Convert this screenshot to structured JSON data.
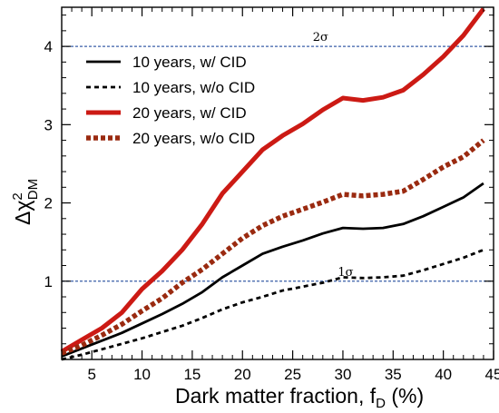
{
  "chart_data": {
    "type": "line",
    "xlabel_main": "Dark matter fraction, f",
    "xlabel_sub": "D",
    "xlabel_tail": " (%)",
    "ylabel_main": "Δχ",
    "ylabel_sup": "2",
    "ylabel_sub": "DM",
    "xlim": [
      2,
      45
    ],
    "ylim": [
      0,
      4.5
    ],
    "xticks": [
      5,
      10,
      15,
      20,
      25,
      30,
      35,
      40,
      45
    ],
    "yticks": [
      1,
      2,
      3,
      4
    ],
    "reference_lines": [
      {
        "y": 4,
        "label": "2σ",
        "label_x": 27,
        "color": "#3a5fa8"
      },
      {
        "y": 1,
        "label": "1σ",
        "label_x": 29.5,
        "color": "#3a5fa8"
      }
    ],
    "legend_position": "upper-left",
    "series": [
      {
        "name": "10 years, w/ CID",
        "color": "#000000",
        "width": 2.8,
        "dash": "",
        "x": [
          2,
          4,
          6,
          8,
          10,
          12,
          14,
          16,
          18,
          20,
          22,
          24,
          26,
          28,
          30,
          32,
          34,
          36,
          38,
          40,
          42,
          44
        ],
        "y": [
          0.04,
          0.14,
          0.24,
          0.34,
          0.46,
          0.58,
          0.71,
          0.86,
          1.05,
          1.2,
          1.35,
          1.44,
          1.52,
          1.61,
          1.68,
          1.67,
          1.68,
          1.73,
          1.83,
          1.95,
          2.07,
          2.25
        ]
      },
      {
        "name": "10 years, w/o CID",
        "color": "#000000",
        "width": 2.8,
        "dash": "5,4",
        "x": [
          2,
          4,
          6,
          8,
          10,
          12,
          14,
          16,
          18,
          20,
          22,
          24,
          26,
          28,
          30,
          32,
          34,
          36,
          38,
          40,
          42,
          44
        ],
        "y": [
          0.0,
          0.06,
          0.13,
          0.2,
          0.27,
          0.35,
          0.43,
          0.53,
          0.64,
          0.73,
          0.8,
          0.88,
          0.93,
          0.98,
          1.05,
          1.04,
          1.05,
          1.07,
          1.14,
          1.22,
          1.3,
          1.4
        ]
      },
      {
        "name": "20 years, w/ CID",
        "color": "#cc1a14",
        "width": 5,
        "dash": "",
        "x": [
          2,
          4,
          6,
          8,
          10,
          12,
          14,
          16,
          18,
          20,
          22,
          24,
          26,
          28,
          30,
          32,
          34,
          36,
          38,
          40,
          42,
          44
        ],
        "y": [
          0.1,
          0.25,
          0.4,
          0.6,
          0.9,
          1.13,
          1.4,
          1.73,
          2.12,
          2.4,
          2.68,
          2.86,
          3.01,
          3.19,
          3.34,
          3.31,
          3.35,
          3.44,
          3.64,
          3.87,
          4.14,
          4.48
        ]
      },
      {
        "name": "20 years, w/o CID",
        "color": "#9a2a10",
        "width": 5.5,
        "dash": "5,3",
        "x": [
          2,
          4,
          6,
          8,
          10,
          12,
          14,
          16,
          18,
          20,
          22,
          24,
          26,
          28,
          30,
          32,
          34,
          36,
          38,
          40,
          42,
          44
        ],
        "y": [
          0.08,
          0.18,
          0.31,
          0.45,
          0.62,
          0.78,
          0.98,
          1.15,
          1.35,
          1.55,
          1.71,
          1.83,
          1.92,
          2.01,
          2.11,
          2.09,
          2.11,
          2.15,
          2.3,
          2.46,
          2.59,
          2.8
        ]
      }
    ]
  }
}
